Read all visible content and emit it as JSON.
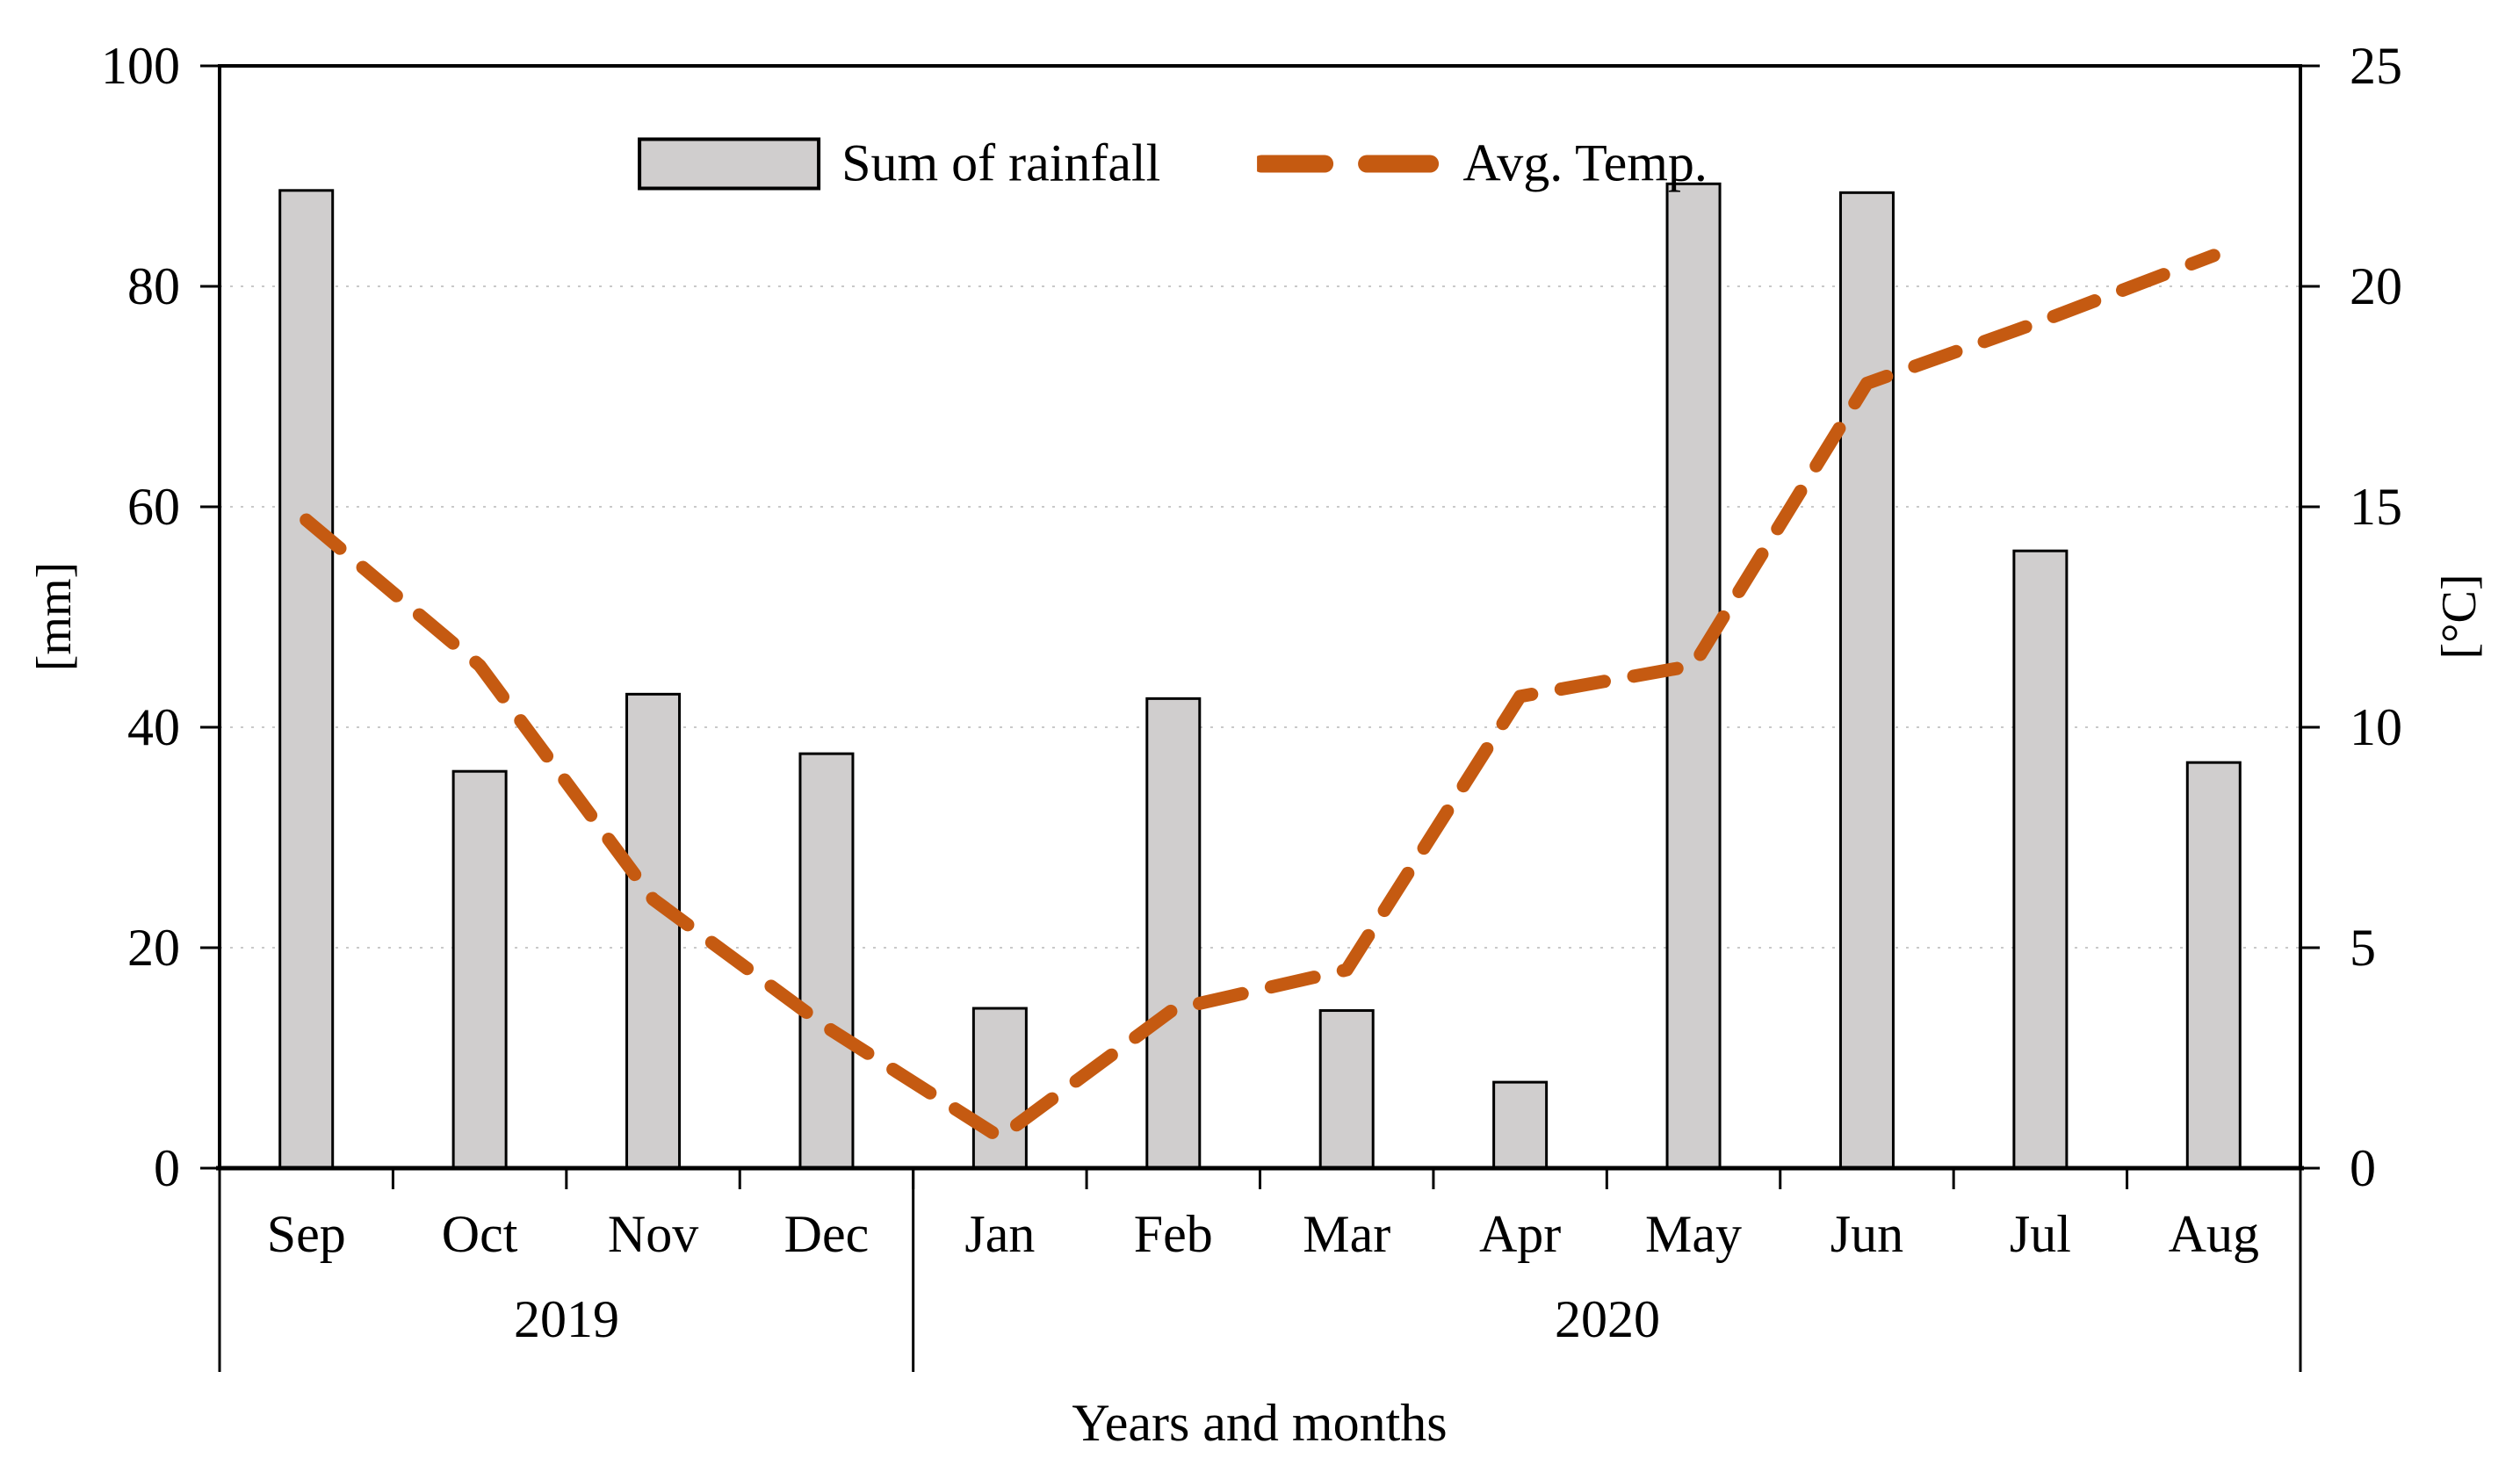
{
  "chart_data": {
    "type": "bar",
    "subtype": "combo-bar-dashed-line",
    "title": "",
    "xlabel": "Years and months",
    "categories": [
      "Sep",
      "Oct",
      "Nov",
      "Dec",
      "Jan",
      "Feb",
      "Mar",
      "Apr",
      "May",
      "Jun",
      "Jul",
      "Aug"
    ],
    "year_groups": [
      {
        "label": "2019",
        "months": 4
      },
      {
        "label": "2020",
        "months": 8
      }
    ],
    "series": [
      {
        "name": "Sum of rainfall",
        "type": "bar",
        "axis": "left",
        "values": [
          88.7,
          36.0,
          43.0,
          37.6,
          14.5,
          42.6,
          14.3,
          7.8,
          89.3,
          88.5,
          56.0,
          36.8
        ],
        "fill_color": "#d0cece",
        "border_color": "#000000"
      },
      {
        "name": "Avg. Temp.",
        "type": "dashed-line",
        "axis": "right",
        "values": [
          14.7,
          11.4,
          6.1,
          3.2,
          0.7,
          3.6,
          4.5,
          10.7,
          11.4,
          17.8,
          19.2,
          20.7
        ],
        "color": "#c55a11"
      }
    ],
    "left_axis": {
      "label": "[mm]",
      "min": 0,
      "max": 100,
      "step": 20,
      "ticks": [
        "0",
        "20",
        "40",
        "60",
        "80",
        "100"
      ]
    },
    "right_axis": {
      "label": "[°C]",
      "min": 0,
      "max": 25,
      "step": 5,
      "ticks": [
        "0",
        "5",
        "10",
        "15",
        "20",
        "25"
      ]
    },
    "grid": "horizontal-dotted",
    "grid_color": "#c9c9c9",
    "frame_color": "#000000",
    "legend_position": "top-center"
  },
  "legend": {
    "rainfall_label": "Sum of rainfall",
    "temp_label": "Avg. Temp."
  }
}
